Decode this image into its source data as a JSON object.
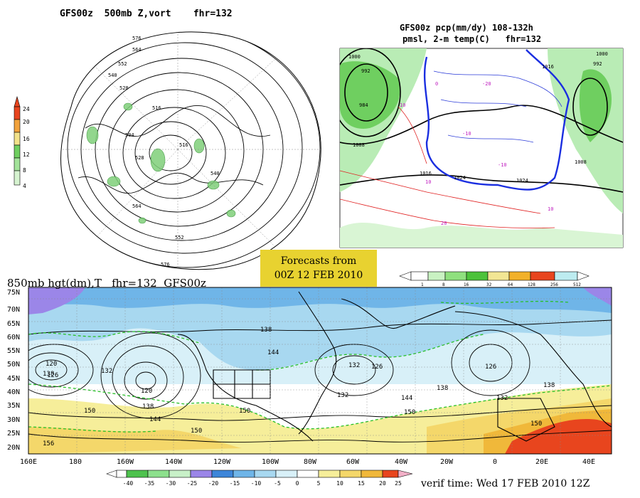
{
  "panels": {
    "polar": {
      "title": "GFS00z  500mb Z,vort    fhr=132",
      "colorbar_ticks": [
        "24",
        "20",
        "16",
        "12",
        "8",
        "4"
      ],
      "colorbar_colors": [
        "#e8451e",
        "#f2a23c",
        "#f2e28a",
        "#6fcf60",
        "#a3e39a",
        "#d6f3d0"
      ],
      "contour_labels": [
        "576",
        "564",
        "552",
        "540",
        "528",
        "516",
        "504",
        "516",
        "528",
        "540",
        "552",
        "564",
        "576"
      ]
    },
    "precip": {
      "title_line1": "GFS00z pcp(mm/dy) 108-132h",
      "title_line2": "pmsl, 2-m temp(C)   fhr=132",
      "isobar_labels": [
        "1000",
        "992",
        "984",
        "1008",
        "1016",
        "1024",
        "1016",
        "1008",
        "1000",
        "992",
        "1024"
      ],
      "temp_labels": [
        "-20",
        "-10",
        "-10",
        "0",
        "10",
        "10",
        "10",
        "20"
      ]
    },
    "forecast_box": {
      "line1": "Forecasts from",
      "line2": "00Z 12 FEB 2010"
    },
    "precip_colorbar": {
      "ticks": [
        "1",
        "8",
        "16",
        "32",
        "64",
        "128",
        "256",
        "512"
      ],
      "colors": [
        "#ffffff",
        "#c9f2c2",
        "#8fe07e",
        "#4cc23a",
        "#f2e694",
        "#f2b12a",
        "#e8451e",
        "#bdecf0",
        "#ffffff"
      ]
    },
    "main": {
      "title": "850mb hgt(dm),T   fhr=132  GFS00z",
      "lat_labels": [
        "75N",
        "70N",
        "65N",
        "60N",
        "55N",
        "50N",
        "45N",
        "40N",
        "35N",
        "30N",
        "25N",
        "20N"
      ],
      "lon_labels": [
        "160E",
        "180",
        "160W",
        "140W",
        "120W",
        "100W",
        "80W",
        "60W",
        "40W",
        "20W",
        "0",
        "20E",
        "40E"
      ],
      "height_labels": [
        "138",
        "126",
        "120",
        "132",
        "120",
        "138",
        "144",
        "150",
        "150",
        "144",
        "138",
        "132",
        "126",
        "138",
        "144",
        "150",
        "132",
        "126",
        "132",
        "138",
        "150",
        "150",
        "156"
      ],
      "verif_time": "verif time: Wed 17 FEB 2010 12Z"
    },
    "temp_colorbar": {
      "ticks": [
        "-40",
        "-35",
        "-30",
        "-25",
        "-20",
        "-15",
        "-10",
        "-5",
        "0",
        "5",
        "10",
        "15",
        "20",
        "25"
      ],
      "colors": [
        "#ffffff",
        "#4dc24d",
        "#8de08d",
        "#c8f0c8",
        "#9b86e8",
        "#3d86d9",
        "#6fb5e8",
        "#a8d8f0",
        "#d8f0f8",
        "#ffffff",
        "#f6ee9a",
        "#f4d76a",
        "#f0b83a",
        "#e8451e",
        "#f2b0c8"
      ]
    }
  }
}
